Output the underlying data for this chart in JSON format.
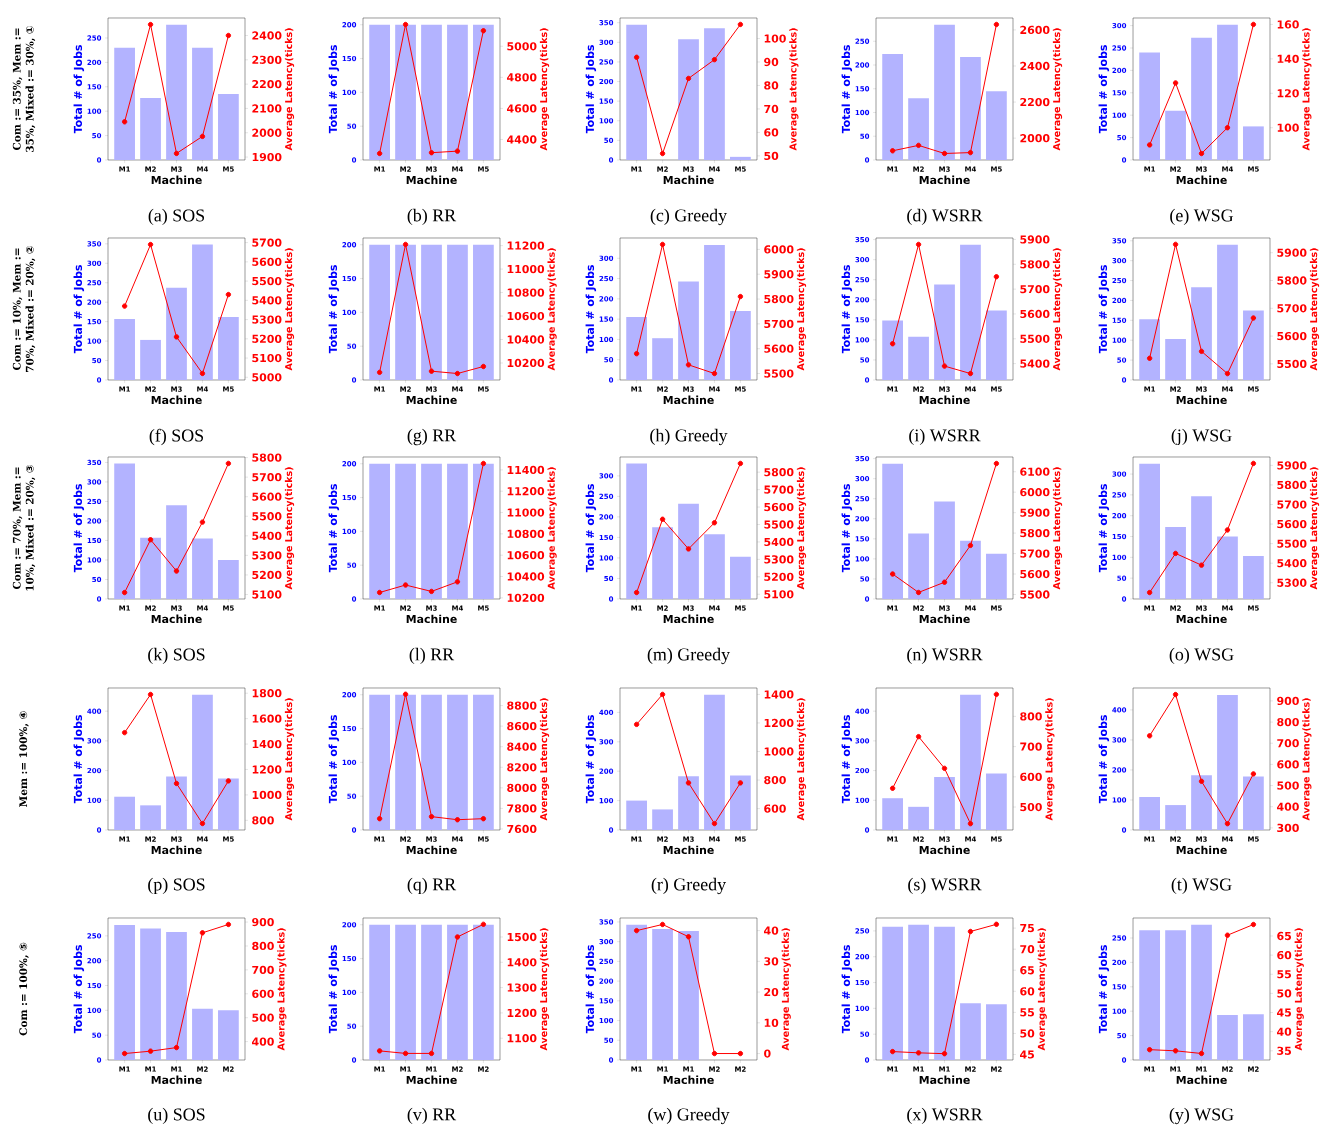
{
  "chart_data": [
    {
      "type": "bar",
      "title": "(a) SOS",
      "annotations": [
        "Com := 35%, Mem := 35%, Mixed := 30%, ①"
      ],
      "categories": [
        "M1",
        "M2",
        "M3",
        "M4",
        "M5"
      ],
      "xlabel": "Machine",
      "ylabel": "Total # of Jobs",
      "y2label": "Average Latency(ticks)",
      "marker": "circle",
      "ylim": [
        0,
        291
      ],
      "yticks": [
        0,
        50,
        100,
        150,
        200,
        250
      ],
      "y2lim": [
        1888,
        2472
      ],
      "y2ticks": [
        1900,
        2000,
        2100,
        2200,
        2300,
        2400
      ],
      "series": [
        {
          "color": "#b3b3ff",
          "values": [
            230,
            127,
            277,
            230,
            135
          ]
        },
        {
          "type": "line",
          "axis": "y2",
          "color": "#ff0000",
          "values": [
            2045,
            2445,
            1915,
            1985,
            2400
          ]
        }
      ]
    },
    {
      "type": "bar",
      "title": "(b) RR",
      "categories": [
        "M1",
        "M2",
        "M3",
        "M4",
        "M5"
      ],
      "xlabel": "Machine",
      "ylabel": "Total # of Jobs",
      "y2label": "Average Latency(ticks)",
      "marker": "circle",
      "ylim": [
        0,
        210
      ],
      "yticks": [
        0,
        50,
        100,
        150,
        200
      ],
      "y2lim": [
        4268,
        5182
      ],
      "y2ticks": [
        4400,
        4600,
        4800,
        5000
      ],
      "series": [
        {
          "color": "#b3b3ff",
          "values": [
            200,
            200,
            200,
            200,
            200
          ]
        },
        {
          "type": "line",
          "axis": "y2",
          "color": "#ff0000",
          "values": [
            4310,
            5140,
            4315,
            4325,
            5100
          ]
        }
      ]
    },
    {
      "type": "bar",
      "title": "(c) Greedy",
      "categories": [
        "M1",
        "M2",
        "M3",
        "M4",
        "M5"
      ],
      "xlabel": "Machine",
      "ylabel": "Total # of Jobs",
      "y2label": "Average Latency(ticks)",
      "marker": "circle",
      "ylim": [
        0,
        362
      ],
      "yticks": [
        0,
        50,
        100,
        150,
        200,
        250,
        300,
        350
      ],
      "y2lim": [
        48.25,
        108.75
      ],
      "y2ticks": [
        50,
        60,
        70,
        80,
        90,
        100
      ],
      "series": [
        {
          "color": "#b3b3ff",
          "values": [
            345,
            0,
            308,
            336,
            8
          ]
        },
        {
          "type": "line",
          "axis": "y2",
          "color": "#ff0000",
          "values": [
            92,
            51,
            83,
            91,
            106
          ]
        }
      ]
    },
    {
      "type": "bar",
      "title": "(d) WSRR",
      "categories": [
        "M1",
        "M2",
        "M3",
        "M4",
        "M5"
      ],
      "xlabel": "Machine",
      "ylabel": "Total # of Jobs",
      "y2label": "Average Latency(ticks)",
      "marker": "circle",
      "ylim": [
        0,
        299
      ],
      "yticks": [
        0,
        50,
        100,
        150,
        200,
        250
      ],
      "y2lim": [
        1879,
        2666
      ],
      "y2ticks": [
        2000,
        2200,
        2400,
        2600
      ],
      "series": [
        {
          "color": "#b3b3ff",
          "values": [
            223,
            130,
            285,
            217,
            145
          ]
        },
        {
          "type": "line",
          "axis": "y2",
          "color": "#ff0000",
          "values": [
            1930,
            1960,
            1915,
            1920,
            2630
          ]
        }
      ]
    },
    {
      "type": "bar",
      "title": "(e) WSG",
      "categories": [
        "M1",
        "M2",
        "M3",
        "M4",
        "M5"
      ],
      "xlabel": "Machine",
      "ylabel": "Total # of Jobs",
      "y2label": "Average Latency(ticks)",
      "marker": "circle",
      "ylim": [
        0,
        317
      ],
      "yticks": [
        0,
        50,
        100,
        150,
        200,
        250,
        300
      ],
      "y2lim": [
        81.25,
        163.75
      ],
      "y2ticks": [
        100,
        120,
        140,
        160
      ],
      "series": [
        {
          "color": "#b3b3ff",
          "values": [
            240,
            110,
            273,
            302,
            75
          ]
        },
        {
          "type": "line",
          "axis": "y2",
          "color": "#ff0000",
          "values": [
            90,
            126,
            85,
            100,
            160
          ]
        }
      ]
    },
    {
      "type": "bar",
      "title": "(f) SOS",
      "annotations": [
        "Com := 10%, Mem := 70%, Mixed := 20%, ②"
      ],
      "categories": [
        "M1",
        "M2",
        "M3",
        "M4",
        "M5"
      ],
      "xlabel": "Machine",
      "ylabel": "Total # of Jobs",
      "y2label": "Average Latency(ticks)",
      "marker": "circle",
      "ylim": [
        0,
        365
      ],
      "yticks": [
        0,
        50,
        100,
        150,
        200,
        250,
        300,
        350
      ],
      "y2lim": [
        4986,
        5724
      ],
      "y2ticks": [
        5000,
        5100,
        5200,
        5300,
        5400,
        5500,
        5600,
        5700
      ],
      "series": [
        {
          "color": "#b3b3ff",
          "values": [
            157,
            103,
            237,
            348,
            162
          ]
        },
        {
          "type": "line",
          "axis": "y2",
          "color": "#ff0000",
          "values": [
            5370,
            5690,
            5210,
            5020,
            5430
          ]
        }
      ]
    },
    {
      "type": "bar",
      "title": "(g) RR",
      "categories": [
        "M1",
        "M2",
        "M3",
        "M4",
        "M5"
      ],
      "xlabel": "Machine",
      "ylabel": "Total # of Jobs",
      "y2label": "Average Latency(ticks)",
      "marker": "circle",
      "ylim": [
        0,
        210
      ],
      "yticks": [
        0,
        50,
        100,
        150,
        200
      ],
      "y2lim": [
        10055,
        11265
      ],
      "y2ticks": [
        10200,
        10400,
        10600,
        10800,
        11000,
        11200
      ],
      "series": [
        {
          "color": "#b3b3ff",
          "values": [
            200,
            200,
            200,
            200,
            200
          ]
        },
        {
          "type": "line",
          "axis": "y2",
          "color": "#ff0000",
          "values": [
            10120,
            11210,
            10130,
            10110,
            10170
          ]
        }
      ]
    },
    {
      "type": "bar",
      "title": "(h) Greedy",
      "categories": [
        "M1",
        "M2",
        "M3",
        "M4",
        "M5"
      ],
      "xlabel": "Machine",
      "ylabel": "Total # of Jobs",
      "y2label": "Average Latency(ticks)",
      "marker": "circle",
      "ylim": [
        0,
        350
      ],
      "yticks": [
        0,
        50,
        100,
        150,
        200,
        250,
        300
      ],
      "y2lim": [
        5474,
        6046
      ],
      "y2ticks": [
        5500,
        5600,
        5700,
        5800,
        5900,
        6000
      ],
      "series": [
        {
          "color": "#b3b3ff",
          "values": [
            155,
            103,
            243,
            333,
            170
          ]
        },
        {
          "type": "line",
          "axis": "y2",
          "color": "#ff0000",
          "values": [
            5580,
            6020,
            5535,
            5500,
            5810
          ]
        }
      ]
    },
    {
      "type": "bar",
      "title": "(i) WSRR",
      "categories": [
        "M1",
        "M2",
        "M3",
        "M4",
        "M5"
      ],
      "xlabel": "Machine",
      "ylabel": "Total # of Jobs",
      "y2label": "Average Latency(ticks)",
      "marker": "circle",
      "ylim": [
        0,
        354
      ],
      "yticks": [
        0,
        50,
        100,
        150,
        200,
        250,
        300,
        350
      ],
      "y2lim": [
        5334,
        5906
      ],
      "y2ticks": [
        5400,
        5500,
        5600,
        5700,
        5800,
        5900
      ],
      "series": [
        {
          "color": "#b3b3ff",
          "values": [
            148,
            108,
            238,
            337,
            173
          ]
        },
        {
          "type": "line",
          "axis": "y2",
          "color": "#ff0000",
          "values": [
            5480,
            5880,
            5390,
            5360,
            5750
          ]
        }
      ]
    },
    {
      "type": "bar",
      "title": "(j) WSG",
      "categories": [
        "M1",
        "M2",
        "M3",
        "M4",
        "M5"
      ],
      "xlabel": "Machine",
      "ylabel": "Total # of Jobs",
      "y2label": "Average Latency(ticks)",
      "marker": "circle",
      "ylim": [
        0,
        357
      ],
      "yticks": [
        0,
        50,
        100,
        150,
        200,
        250,
        300,
        350
      ],
      "y2lim": [
        5442,
        5953
      ],
      "y2ticks": [
        5500,
        5600,
        5700,
        5800,
        5900
      ],
      "series": [
        {
          "color": "#b3b3ff",
          "values": [
            153,
            103,
            233,
            340,
            175
          ]
        },
        {
          "type": "line",
          "axis": "y2",
          "color": "#ff0000",
          "values": [
            5520,
            5930,
            5545,
            5465,
            5665
          ]
        }
      ]
    },
    {
      "type": "bar",
      "title": "(k) SOS",
      "annotations": [
        "Com := 70%, Mem := 10%, Mixed := 20%, ③"
      ],
      "categories": [
        "M1",
        "M2",
        "M3",
        "M4",
        "M5"
      ],
      "xlabel": "Machine",
      "ylabel": "Total # of Jobs",
      "y2label": "Average Latency(ticks)",
      "marker": "circle",
      "ylim": [
        0,
        364
      ],
      "yticks": [
        0,
        50,
        100,
        150,
        200,
        250,
        300,
        350
      ],
      "y2lim": [
        5077,
        5803
      ],
      "y2ticks": [
        5100,
        5200,
        5300,
        5400,
        5500,
        5600,
        5700,
        5800
      ],
      "series": [
        {
          "color": "#b3b3ff",
          "values": [
            347,
            157,
            240,
            155,
            100
          ]
        },
        {
          "type": "line",
          "axis": "y2",
          "color": "#ff0000",
          "values": [
            5110,
            5380,
            5220,
            5470,
            5770
          ]
        }
      ]
    },
    {
      "type": "bar",
      "title": "(l) RR",
      "categories": [
        "M1",
        "M2",
        "M3",
        "M4",
        "M5"
      ],
      "xlabel": "Machine",
      "ylabel": "Total # of Jobs",
      "y2label": "Average Latency(ticks)",
      "marker": "circle",
      "ylim": [
        0,
        210
      ],
      "yticks": [
        0,
        50,
        100,
        150,
        200
      ],
      "y2lim": [
        10189,
        11521
      ],
      "y2ticks": [
        10200,
        10400,
        10600,
        10800,
        11000,
        11200,
        11400
      ],
      "series": [
        {
          "color": "#b3b3ff",
          "values": [
            200,
            200,
            200,
            200,
            200
          ]
        },
        {
          "type": "line",
          "axis": "y2",
          "color": "#ff0000",
          "values": [
            10250,
            10320,
            10260,
            10350,
            11460
          ]
        }
      ]
    },
    {
      "type": "bar",
      "title": "(m) Greedy",
      "categories": [
        "M1",
        "M2",
        "M3",
        "M4",
        "M5"
      ],
      "xlabel": "Machine",
      "ylabel": "Total # of Jobs",
      "y2label": "Average Latency(ticks)",
      "marker": "circle",
      "ylim": [
        0,
        346
      ],
      "yticks": [
        0,
        50,
        100,
        150,
        200,
        250,
        300
      ],
      "y2lim": [
        5073,
        5887
      ],
      "y2ticks": [
        5100,
        5200,
        5300,
        5400,
        5500,
        5600,
        5700,
        5800
      ],
      "series": [
        {
          "color": "#b3b3ff",
          "values": [
            330,
            175,
            232,
            158,
            103
          ]
        },
        {
          "type": "line",
          "axis": "y2",
          "color": "#ff0000",
          "values": [
            5110,
            5530,
            5360,
            5510,
            5850
          ]
        }
      ]
    },
    {
      "type": "bar",
      "title": "(n) WSRR",
      "categories": [
        "M1",
        "M2",
        "M3",
        "M4",
        "M5"
      ],
      "xlabel": "Machine",
      "ylabel": "Total # of Jobs",
      "y2label": "Average Latency(ticks)",
      "marker": "circle",
      "ylim": [
        0,
        354
      ],
      "yticks": [
        0,
        50,
        100,
        150,
        200,
        250,
        300,
        350
      ],
      "y2lim": [
        5478,
        6172
      ],
      "y2ticks": [
        5500,
        5600,
        5700,
        5800,
        5900,
        6000,
        6100
      ],
      "series": [
        {
          "color": "#b3b3ff",
          "values": [
            337,
            163,
            243,
            145,
            113
          ]
        },
        {
          "type": "line",
          "axis": "y2",
          "color": "#ff0000",
          "values": [
            5600,
            5510,
            5560,
            5740,
            6140
          ]
        }
      ]
    },
    {
      "type": "bar",
      "title": "(o) WSG",
      "categories": [
        "M1",
        "M2",
        "M3",
        "M4",
        "M5"
      ],
      "xlabel": "Machine",
      "ylabel": "Total # of Jobs",
      "y2label": "Average Latency(ticks)",
      "marker": "circle",
      "ylim": [
        0,
        341
      ],
      "yticks": [
        0,
        50,
        100,
        150,
        200,
        250,
        300
      ],
      "y2lim": [
        5217,
        5943
      ],
      "y2ticks": [
        5300,
        5400,
        5500,
        5600,
        5700,
        5800,
        5900
      ],
      "series": [
        {
          "color": "#b3b3ff",
          "values": [
            325,
            173,
            247,
            150,
            103
          ]
        },
        {
          "type": "line",
          "axis": "y2",
          "color": "#ff0000",
          "values": [
            5250,
            5450,
            5390,
            5570,
            5910
          ]
        }
      ]
    },
    {
      "type": "bar",
      "title": "(p) SOS",
      "annotations": [
        "Mem := 100%, ④"
      ],
      "categories": [
        "M1",
        "M2",
        "M3",
        "M4",
        "M5"
      ],
      "xlabel": "Machine",
      "ylabel": "Total # of Jobs",
      "y2label": "Average Latency(ticks)",
      "marker": "circle",
      "ylim": [
        0,
        478
      ],
      "yticks": [
        0,
        100,
        200,
        300,
        400
      ],
      "y2lim": [
        724,
        1841
      ],
      "y2ticks": [
        800,
        1000,
        1200,
        1400,
        1600,
        1800
      ],
      "series": [
        {
          "color": "#b3b3ff",
          "values": [
            112,
            83,
            180,
            455,
            173
          ]
        },
        {
          "type": "line",
          "axis": "y2",
          "color": "#ff0000",
          "values": [
            1490,
            1790,
            1090,
            775,
            1110
          ]
        }
      ]
    },
    {
      "type": "bar",
      "title": "(q) RR",
      "categories": [
        "M1",
        "M2",
        "M3",
        "M4",
        "M5"
      ],
      "xlabel": "Machine",
      "ylabel": "Total # of Jobs",
      "y2label": "Average Latency(ticks)",
      "marker": "circle",
      "ylim": [
        0,
        210
      ],
      "yticks": [
        0,
        50,
        100,
        150,
        200
      ],
      "y2lim": [
        7590,
        8971
      ],
      "y2ticks": [
        7600,
        7800,
        8000,
        8200,
        8400,
        8600,
        8800
      ],
      "series": [
        {
          "color": "#b3b3ff",
          "values": [
            200,
            200,
            200,
            200,
            200
          ]
        },
        {
          "type": "line",
          "axis": "y2",
          "color": "#ff0000",
          "values": [
            7700,
            8910,
            7720,
            7690,
            7700
          ]
        }
      ]
    },
    {
      "type": "bar",
      "title": "(r) Greedy",
      "categories": [
        "M1",
        "M2",
        "M3",
        "M4",
        "M5"
      ],
      "xlabel": "Machine",
      "ylabel": "Total # of Jobs",
      "y2label": "Average Latency(ticks)",
      "marker": "circle",
      "ylim": [
        0,
        483
      ],
      "yticks": [
        0,
        100,
        200,
        300,
        400
      ],
      "y2lim": [
        450,
        1445
      ],
      "y2ticks": [
        600,
        800,
        1000,
        1200,
        1400
      ],
      "series": [
        {
          "color": "#b3b3ff",
          "values": [
            100,
            70,
            183,
            460,
            185
          ]
        },
        {
          "type": "line",
          "axis": "y2",
          "color": "#ff0000",
          "values": [
            1190,
            1400,
            780,
            495,
            780
          ]
        }
      ]
    },
    {
      "type": "bar",
      "title": "(s) WSRR",
      "categories": [
        "M1",
        "M2",
        "M3",
        "M4",
        "M5"
      ],
      "xlabel": "Machine",
      "ylabel": "Total # of Jobs",
      "y2label": "Average Latency(ticks)",
      "marker": "circle",
      "ylim": [
        0,
        478
      ],
      "yticks": [
        0,
        100,
        200,
        300,
        400
      ],
      "y2lim": [
        424,
        894
      ],
      "y2ticks": [
        500,
        600,
        700,
        800
      ],
      "series": [
        {
          "color": "#b3b3ff",
          "values": [
            107,
            78,
            178,
            455,
            190
          ]
        },
        {
          "type": "line",
          "axis": "y2",
          "color": "#ff0000",
          "values": [
            562,
            733,
            628,
            445,
            873
          ]
        }
      ]
    },
    {
      "type": "bar",
      "title": "(t) WSG",
      "categories": [
        "M1",
        "M2",
        "M3",
        "M4",
        "M5"
      ],
      "xlabel": "Machine",
      "ylabel": "Total # of Jobs",
      "y2label": "Average Latency(ticks)",
      "marker": "circle",
      "ylim": [
        0,
        473
      ],
      "yticks": [
        0,
        100,
        200,
        300,
        400
      ],
      "y2lim": [
        290,
        961
      ],
      "y2ticks": [
        300,
        400,
        500,
        600,
        700,
        800,
        900
      ],
      "series": [
        {
          "color": "#b3b3ff",
          "values": [
            110,
            83,
            182,
            450,
            178
          ]
        },
        {
          "type": "line",
          "axis": "y2",
          "color": "#ff0000",
          "values": [
            735,
            930,
            520,
            320,
            555
          ]
        }
      ]
    },
    {
      "type": "bar",
      "title": "(u) SOS",
      "annotations": [
        "Com := 100%, ⑤"
      ],
      "categories": [
        "M1",
        "M1",
        "M1",
        "M2",
        "M2"
      ],
      "xlabel": "Machine",
      "ylabel": "Total # of Jobs",
      "y2label": "Average Latency(ticks)",
      "marker": "circle",
      "ylim": [
        0,
        286
      ],
      "yticks": [
        0,
        50,
        100,
        150,
        200,
        250
      ],
      "y2lim": [
        323,
        917
      ],
      "y2ticks": [
        400,
        500,
        600,
        700,
        800,
        900
      ],
      "series": [
        {
          "color": "#b3b3ff",
          "values": [
            272,
            265,
            258,
            103,
            100
          ]
        },
        {
          "type": "line",
          "axis": "y2",
          "color": "#ff0000",
          "values": [
            350,
            360,
            375,
            855,
            890
          ]
        }
      ]
    },
    {
      "type": "bar",
      "title": "(v) RR",
      "categories": [
        "M1",
        "M1",
        "M1",
        "M2",
        "M2"
      ],
      "xlabel": "Machine",
      "ylabel": "Total # of Jobs",
      "y2label": "Average Latency(ticks)",
      "marker": "circle",
      "ylim": [
        0,
        210
      ],
      "yticks": [
        0,
        50,
        100,
        150,
        200
      ],
      "y2lim": [
        1014,
        1575
      ],
      "y2ticks": [
        1100,
        1200,
        1300,
        1400,
        1500
      ],
      "series": [
        {
          "color": "#b3b3ff",
          "values": [
            200,
            200,
            200,
            200,
            200
          ]
        },
        {
          "type": "line",
          "axis": "y2",
          "color": "#ff0000",
          "values": [
            1050,
            1040,
            1040,
            1500,
            1550
          ]
        }
      ]
    },
    {
      "type": "bar",
      "title": "(w) Greedy",
      "categories": [
        "M1",
        "M1",
        "M1",
        "M2",
        "M2"
      ],
      "xlabel": "Machine",
      "ylabel": "Total # of Jobs",
      "y2label": "Average Latency(ticks)",
      "marker": "circle",
      "ylim": [
        0,
        360
      ],
      "yticks": [
        0,
        50,
        100,
        150,
        200,
        250,
        300,
        350
      ],
      "y2lim": [
        -2.1,
        44.1
      ],
      "y2ticks": [
        0,
        10,
        20,
        30,
        40
      ],
      "series": [
        {
          "color": "#b3b3ff",
          "values": [
            343,
            332,
            327,
            0,
            0
          ]
        },
        {
          "type": "line",
          "axis": "y2",
          "color": "#ff0000",
          "values": [
            40,
            42,
            38,
            0,
            0
          ]
        }
      ]
    },
    {
      "type": "bar",
      "title": "(x) WSRR",
      "categories": [
        "M1",
        "M1",
        "M1",
        "M2",
        "M2"
      ],
      "xlabel": "Machine",
      "ylabel": "Total # of Jobs",
      "y2label": "Average Latency(ticks)",
      "marker": "circle",
      "ylim": [
        0,
        275
      ],
      "yticks": [
        0,
        50,
        100,
        150,
        200,
        250
      ],
      "y2lim": [
        43.7,
        77.4
      ],
      "y2ticks": [
        45,
        50,
        55,
        60,
        65,
        70,
        75
      ],
      "series": [
        {
          "color": "#b3b3ff",
          "values": [
            258,
            262,
            258,
            110,
            108
          ]
        },
        {
          "type": "line",
          "axis": "y2",
          "color": "#ff0000",
          "values": [
            45.7,
            45.4,
            45.2,
            74.2,
            75.9
          ]
        }
      ]
    },
    {
      "type": "bar",
      "title": "(y) WSG",
      "categories": [
        "M1",
        "M1",
        "M1",
        "M2",
        "M2"
      ],
      "xlabel": "Machine",
      "ylabel": "Total # of Jobs",
      "y2label": "Average Latency(ticks)",
      "marker": "circle",
      "ylim": [
        0,
        291
      ],
      "yticks": [
        0,
        50,
        100,
        150,
        200,
        250
      ],
      "y2lim": [
        32.6,
        69.7
      ],
      "y2ticks": [
        35,
        40,
        45,
        50,
        55,
        60,
        65
      ],
      "series": [
        {
          "color": "#b3b3ff",
          "values": [
            266,
            266,
            277,
            92,
            94
          ]
        },
        {
          "type": "line",
          "axis": "y2",
          "color": "#ff0000",
          "values": [
            35.3,
            35.0,
            34.3,
            65.2,
            68.0
          ]
        }
      ]
    }
  ]
}
